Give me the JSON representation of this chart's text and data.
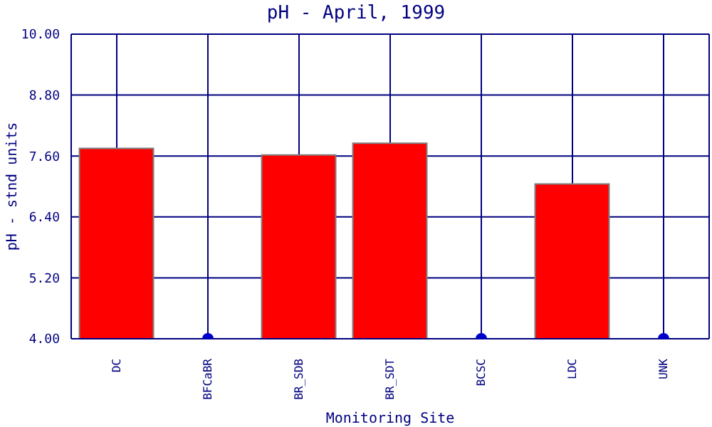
{
  "chart_data": {
    "type": "bar",
    "title": "pH - April, 1999",
    "xlabel": "Monitoring Site",
    "ylabel": "pH - stnd units",
    "categories": [
      "DC",
      "BFCaBR",
      "BR_SDB",
      "BR_SDT",
      "BCSC",
      "LDC",
      "UNK"
    ],
    "series": [
      {
        "color": "#ff0000",
        "values": [
          7.75,
          null,
          7.62,
          7.85,
          null,
          7.05,
          null
        ]
      },
      {
        "type": "scatter",
        "color": "#0000cc",
        "marker": "circle",
        "values": [
          null,
          4.0,
          null,
          null,
          4.0,
          null,
          4.0
        ]
      }
    ],
    "ylim": [
      4.0,
      10.0
    ],
    "yticks": [
      {
        "value": 4.0,
        "label": "4.00"
      },
      {
        "value": 5.2,
        "label": "5.20"
      },
      {
        "value": 6.4,
        "label": "6.40"
      },
      {
        "value": 7.6,
        "label": "7.60"
      },
      {
        "value": 8.8,
        "label": "8.80"
      },
      {
        "value": 10.0,
        "label": "10.00"
      }
    ],
    "grid": true
  }
}
